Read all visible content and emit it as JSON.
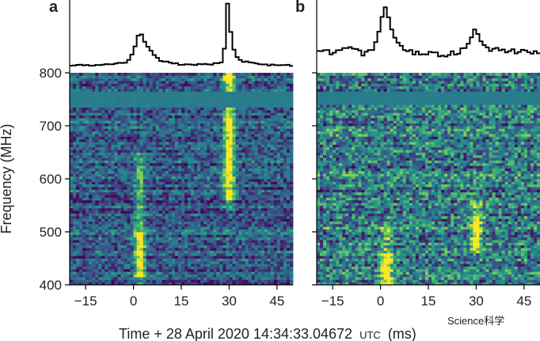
{
  "figure": {
    "panels": [
      {
        "id": "a",
        "label": "a"
      },
      {
        "id": "b",
        "label": "b"
      }
    ],
    "y_axis_label": "Frequency (MHz)",
    "x_axis_label_prefix": "Time + 28 April 2020 14:34:33.04672",
    "x_axis_label_unit_small": "UTC",
    "x_axis_label_suffix": "(ms)",
    "watermark": "Science科学",
    "colormap": [
      "#440154",
      "#3b528b",
      "#21918c",
      "#5ec962",
      "#fde725"
    ]
  },
  "chart_data": [
    {
      "type": "heatmap",
      "panel": "a",
      "title": "",
      "xlabel": "Time + 28 April 2020 14:34:33.04672 UTC (ms)",
      "ylabel": "Frequency (MHz)",
      "xlim": [
        -20,
        50
      ],
      "ylim": [
        400,
        800
      ],
      "x_ticks": [
        -15,
        0,
        15,
        30,
        45
      ],
      "x_tick_labels": [
        "−15",
        "0",
        "15",
        "30",
        "45"
      ],
      "y_ticks": [
        400,
        500,
        600,
        700,
        800
      ],
      "y_tick_labels": [
        "400",
        "500",
        "600",
        "700",
        "800"
      ],
      "masked_band_mhz": [
        733,
        765
      ],
      "bursts": [
        {
          "center_ms": 2,
          "freq_range_mhz": [
            400,
            650
          ],
          "peak_mhz": [
            415,
            500
          ]
        },
        {
          "center_ms": 30,
          "freq_range_mhz": [
            540,
            800
          ],
          "peak_mhz": [
            560,
            800
          ]
        }
      ],
      "profile": {
        "x": [
          -20,
          -10,
          -2,
          0,
          1,
          2,
          3,
          5,
          8,
          15,
          25,
          28,
          29,
          29.5,
          30,
          30.5,
          31,
          33,
          40,
          50
        ],
        "y": [
          0.04,
          0.05,
          0.08,
          0.25,
          0.4,
          0.6,
          0.45,
          0.3,
          0.12,
          0.05,
          0.06,
          0.1,
          0.5,
          1.0,
          0.95,
          0.55,
          0.35,
          0.12,
          0.05,
          0.04
        ]
      }
    },
    {
      "type": "heatmap",
      "panel": "b",
      "title": "",
      "xlabel": "Time + 28 April 2020 14:34:33.04672 UTC (ms)",
      "ylabel": "",
      "xlim": [
        -20,
        50
      ],
      "ylim": [
        400,
        800
      ],
      "x_ticks": [
        -15,
        0,
        15,
        30,
        45
      ],
      "x_tick_labels": [
        "−15",
        "0",
        "15",
        "30",
        "45"
      ],
      "masked_band_mhz": [
        740,
        765
      ],
      "bursts": [
        {
          "center_ms": 2,
          "freq_range_mhz": [
            400,
            520
          ],
          "peak_mhz": [
            400,
            460
          ]
        },
        {
          "center_ms": 30,
          "freq_range_mhz": [
            460,
            560
          ],
          "peak_mhz": [
            470,
            530
          ]
        }
      ],
      "profile": {
        "x": [
          -20,
          -15,
          -10,
          -5,
          -2,
          0,
          1,
          2,
          3,
          4,
          6,
          10,
          15,
          20,
          25,
          28,
          29,
          30,
          31,
          33,
          35,
          40,
          45,
          50
        ],
        "y": [
          0.28,
          0.22,
          0.3,
          0.22,
          0.3,
          0.6,
          0.95,
          0.85,
          0.7,
          0.55,
          0.35,
          0.25,
          0.22,
          0.2,
          0.25,
          0.4,
          0.55,
          0.65,
          0.45,
          0.3,
          0.3,
          0.25,
          0.28,
          0.22
        ]
      }
    }
  ]
}
